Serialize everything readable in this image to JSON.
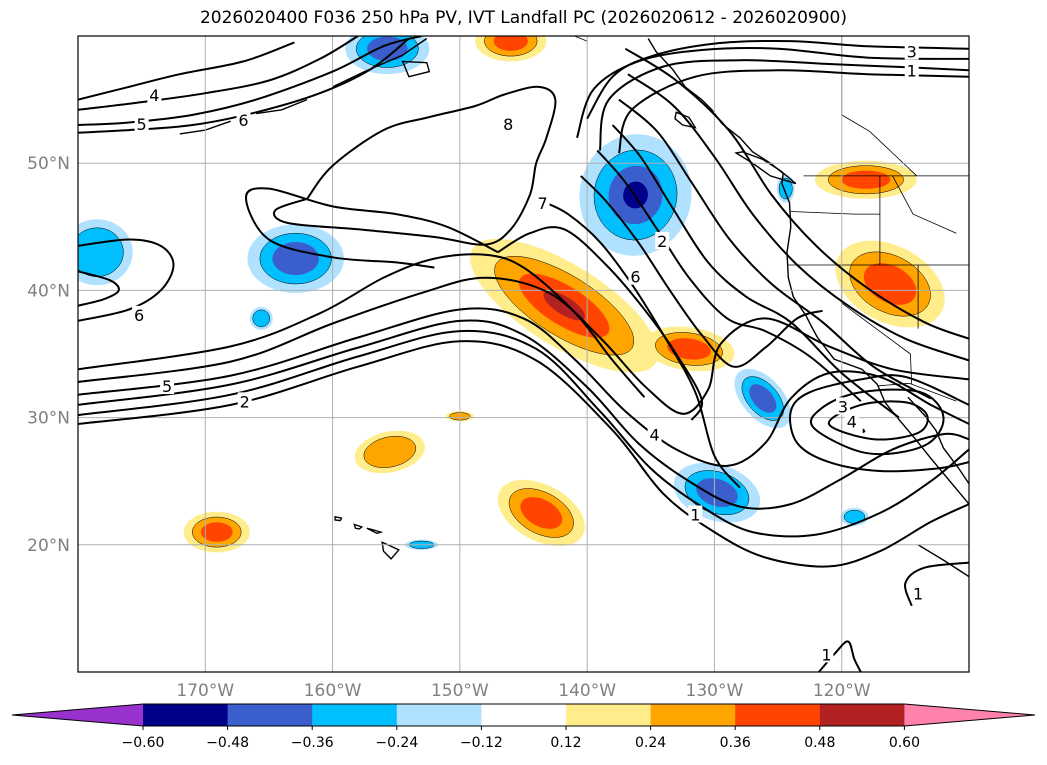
{
  "chart_data": {
    "type": "map-contour",
    "title": "2026020400 F036 250 hPa PV, IVT Landfall PC (2026020612 - 2026020900)",
    "lon_range": [
      -180,
      -110
    ],
    "lat_range": [
      10,
      60
    ],
    "lon_ticks": [
      "170°W",
      "160°W",
      "150°W",
      "140°W",
      "130°W",
      "120°W"
    ],
    "lat_ticks": [
      "50°N",
      "40°N",
      "30°N",
      "20°N"
    ],
    "grid": true,
    "colorbar": {
      "levels": [
        -0.6,
        -0.48,
        -0.36,
        -0.24,
        -0.12,
        0.12,
        0.24,
        0.36,
        0.48,
        0.6
      ],
      "tick_labels": [
        "−0.60",
        "−0.48",
        "−0.36",
        "−0.24",
        "−0.12",
        "0.12",
        "0.24",
        "0.36",
        "0.48",
        "0.60"
      ],
      "colors": [
        "#9932cc",
        "#00008b",
        "#3a5fcd",
        "#00bfff",
        "#b0e2ff",
        "#ffffff",
        "#ffec8b",
        "#ffa500",
        "#ff4500",
        "#b22222",
        "#ff82ab"
      ],
      "extend": "both"
    },
    "contour_labels": [
      {
        "text": "1",
        "lon": -114.5,
        "lat": 57.2
      },
      {
        "text": "3",
        "lon": -114.5,
        "lat": 58.7
      },
      {
        "text": "4",
        "lon": -174.0,
        "lat": 55.3
      },
      {
        "text": "5",
        "lon": -175.0,
        "lat": 53.0
      },
      {
        "text": "6",
        "lon": -167.0,
        "lat": 53.3
      },
      {
        "text": "8",
        "lon": -146.2,
        "lat": 53.0
      },
      {
        "text": "7",
        "lon": -143.5,
        "lat": 46.8
      },
      {
        "text": "2",
        "lon": -134.1,
        "lat": 43.8
      },
      {
        "text": "6",
        "lon": -136.2,
        "lat": 41.0
      },
      {
        "text": "6",
        "lon": -175.2,
        "lat": 38.0
      },
      {
        "text": "5",
        "lon": -173.0,
        "lat": 32.4
      },
      {
        "text": "2",
        "lon": -166.9,
        "lat": 31.2
      },
      {
        "text": "4",
        "lon": -134.7,
        "lat": 28.6
      },
      {
        "text": "3",
        "lon": -119.9,
        "lat": 30.8
      },
      {
        "text": "4",
        "lon": -119.2,
        "lat": 29.6
      },
      {
        "text": "1",
        "lon": -131.5,
        "lat": 22.3
      },
      {
        "text": "1",
        "lon": -114.0,
        "lat": 16.1
      },
      {
        "text": "1",
        "lon": -121.2,
        "lat": 11.3
      }
    ]
  }
}
